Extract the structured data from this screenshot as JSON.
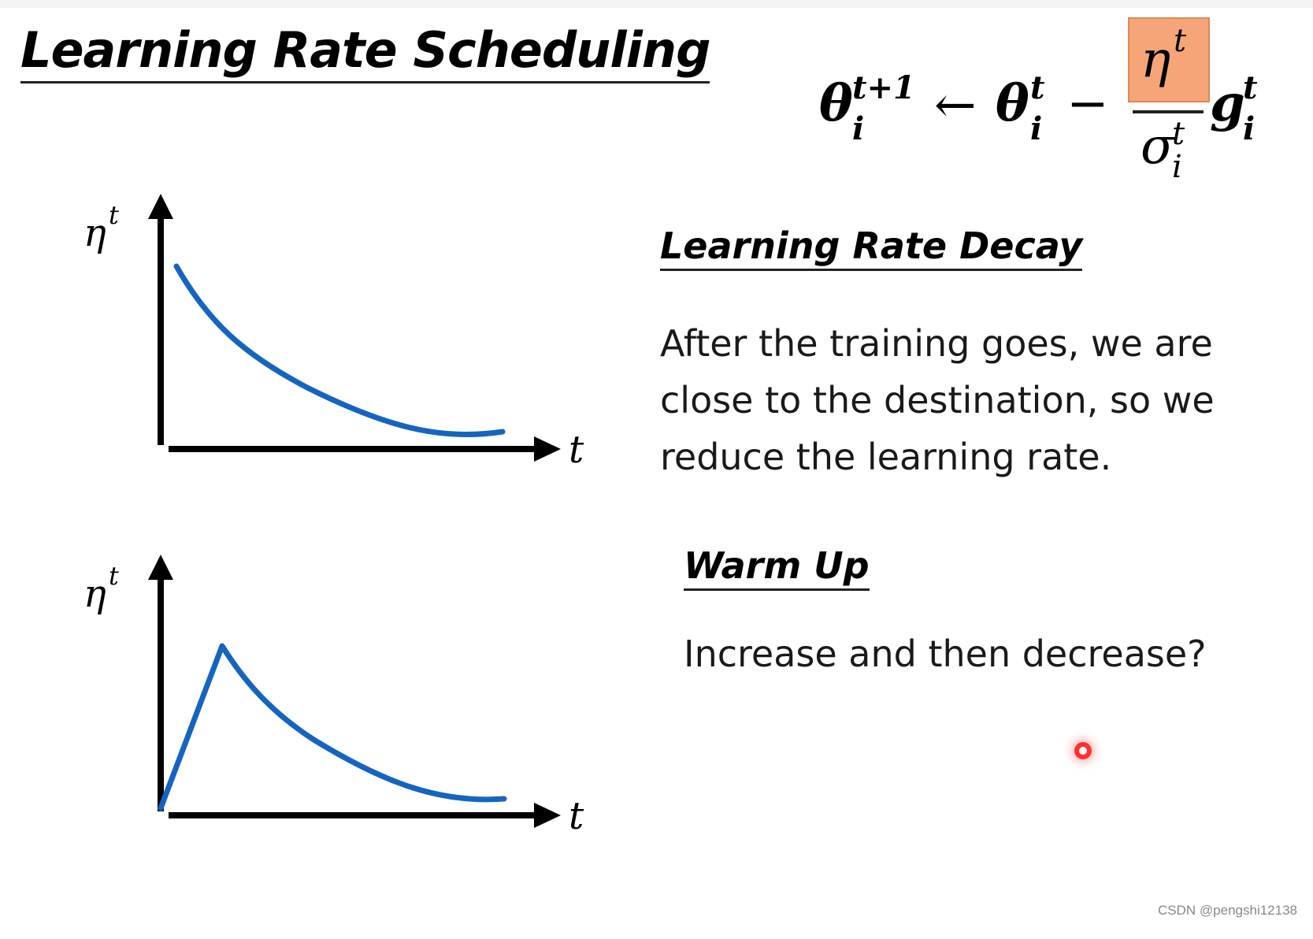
{
  "slide": {
    "title": "Learning Rate Scheduling",
    "formula": {
      "theta": "θ",
      "sup_t_plus_1": "t+1",
      "sub_i": "i",
      "arrow": "←",
      "minus": "−",
      "eta": "η",
      "sigma": "σ",
      "g": "g",
      "sup_t": "t",
      "highlight_color": "#f6a578"
    },
    "decay": {
      "heading": "Learning Rate Decay",
      "text": "After the training goes, we are close to the destination, so we reduce the learning rate."
    },
    "warmup": {
      "heading": "Warm Up",
      "text": "Increase and then decrease?"
    },
    "graphs": {
      "y_label_symbol": "η",
      "y_label_sup": "t",
      "x_label": "t",
      "curve_color": "#1565c0"
    },
    "watermark": "CSDN @pengshi12138"
  }
}
